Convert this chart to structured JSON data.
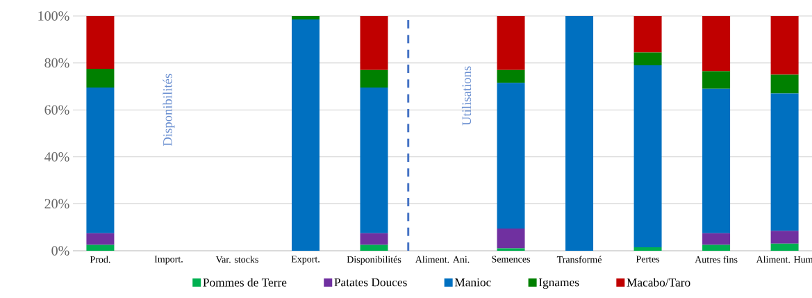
{
  "chart_data": {
    "type": "bar",
    "stacked": true,
    "categories": [
      "Prod.",
      "Import.",
      "Var. stocks",
      "Export.",
      "Disponibilités",
      "Aliment. Ani.",
      "Semences",
      "Transformé",
      "Pertes",
      "Autres fins",
      "Aliment. Hum"
    ],
    "series": [
      {
        "name": "Pommes de Terre",
        "color": "#00b050",
        "values": [
          2.5,
          null,
          null,
          0,
          2.5,
          null,
          1,
          0,
          1.5,
          2.5,
          3
        ]
      },
      {
        "name": "Patates Douces",
        "color": "#7030a0",
        "values": [
          5,
          null,
          null,
          0,
          5,
          null,
          8.5,
          0,
          0,
          5,
          5.5
        ]
      },
      {
        "name": "Manioc",
        "color": "#0070c0",
        "values": [
          62,
          null,
          null,
          98.5,
          62,
          null,
          62,
          100,
          77.5,
          61.5,
          58.5
        ]
      },
      {
        "name": "Ignames",
        "color": "#008000",
        "values": [
          8,
          null,
          null,
          1.5,
          7.5,
          null,
          5.5,
          0,
          5.5,
          7.5,
          8
        ]
      },
      {
        "name": "Macabo/Taro",
        "color": "#c00000",
        "values": [
          22.5,
          null,
          null,
          0,
          23,
          null,
          23,
          0,
          15.5,
          23.5,
          25
        ]
      }
    ],
    "ylim": [
      0,
      100
    ],
    "yticks": [
      {
        "value": 0,
        "label": "0%"
      },
      {
        "value": 20,
        "label": "20%"
      },
      {
        "value": 40,
        "label": "40%"
      },
      {
        "value": 60,
        "label": "60%"
      },
      {
        "value": 80,
        "label": "80%"
      },
      {
        "value": 100,
        "label": "100%"
      }
    ],
    "grid": "y",
    "legend": "bottom",
    "annotations": [
      "Disponibilités",
      "Utilisations"
    ]
  }
}
